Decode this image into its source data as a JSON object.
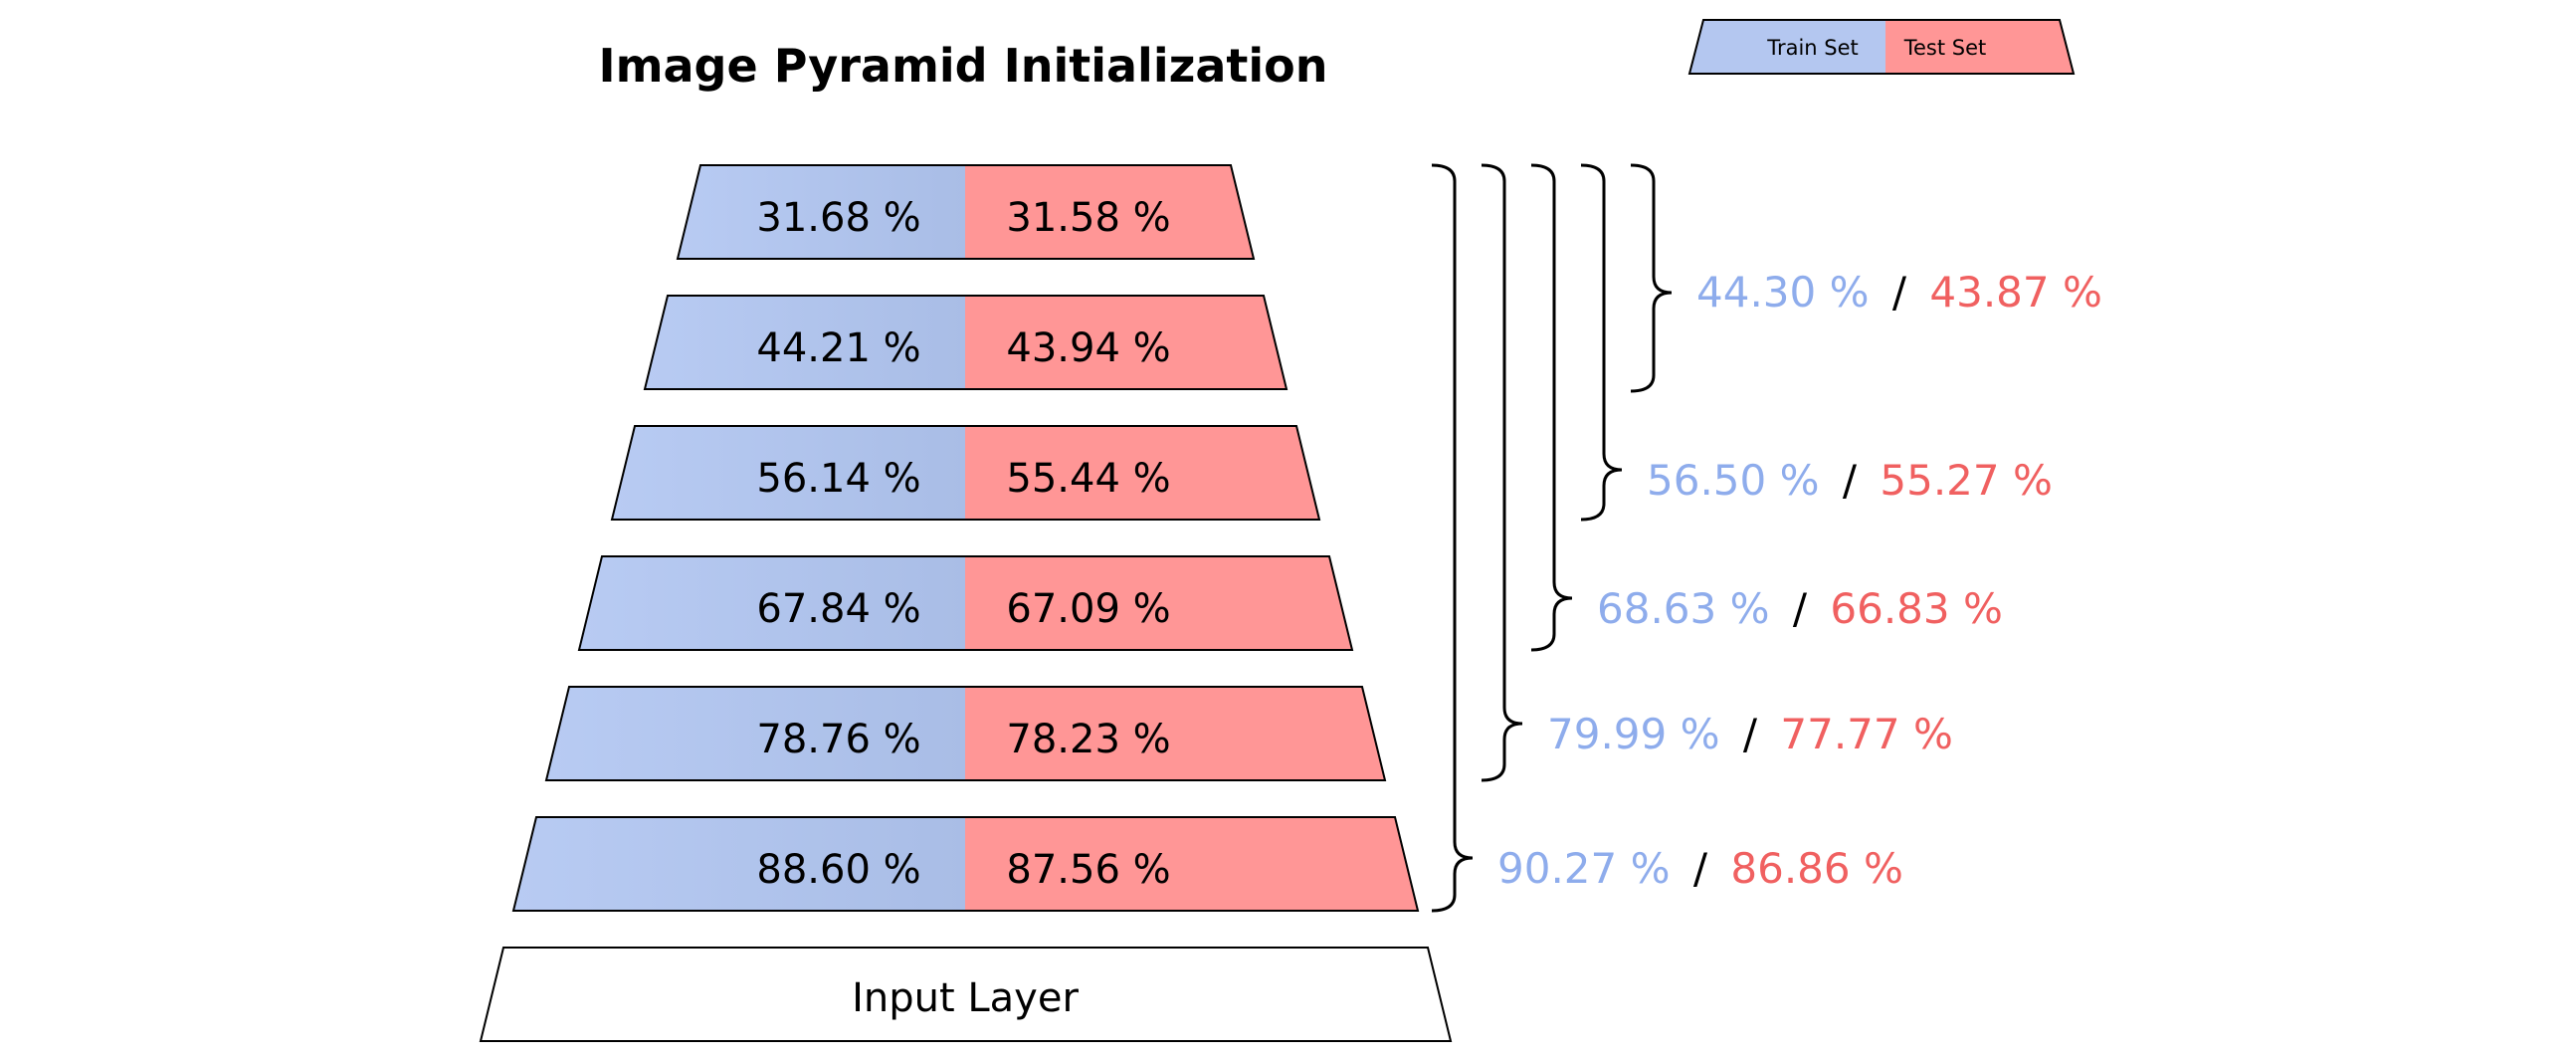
{
  "title": "Image Pyramid Initialization",
  "legend": {
    "train_label": "Train Set",
    "test_label": "Test Set"
  },
  "colors": {
    "train": "#b4c7f0",
    "test": "#ff9696",
    "train_text": "#8eacec",
    "test_text": "#f06060",
    "outline": "#000000"
  },
  "levels": [
    {
      "train": "31.68 %",
      "test": "31.58 %"
    },
    {
      "train": "44.21 %",
      "test": "43.94 %"
    },
    {
      "train": "56.14 %",
      "test": "55.44 %"
    },
    {
      "train": "67.84 %",
      "test": "67.09 %"
    },
    {
      "train": "78.76 %",
      "test": "78.23 %"
    },
    {
      "train": "88.60 %",
      "test": "87.56 %"
    }
  ],
  "input_layer": "Input Layer",
  "combined": [
    {
      "train": "44.30 %",
      "sep": "/",
      "test": "43.87 %"
    },
    {
      "train": "56.50 %",
      "sep": "/",
      "test": "55.27 %"
    },
    {
      "train": "68.63 %",
      "sep": "/",
      "test": "66.83 %"
    },
    {
      "train": "79.99 %",
      "sep": "/",
      "test": "77.77 %"
    },
    {
      "train": "90.27 %",
      "sep": "/",
      "test": "86.86 %"
    }
  ]
}
